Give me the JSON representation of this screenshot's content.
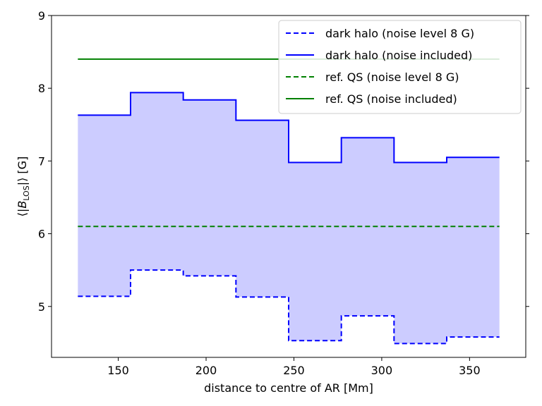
{
  "chart_data": {
    "type": "line",
    "xlabel": "distance to centre of AR [Mm]",
    "ylabel": "⟨|B_LOS|⟩ [G]",
    "ylabel_parts": {
      "open": "⟨|",
      "var": "B",
      "sub": "LOS",
      "close": "|⟩ [G]"
    },
    "xlim": [
      112,
      382
    ],
    "ylim": [
      4.3,
      9.0
    ],
    "xticks": [
      150,
      200,
      250,
      300,
      350
    ],
    "yticks": [
      5,
      6,
      7,
      8,
      9
    ],
    "grid": false,
    "legend_position": "top-right",
    "step_edges": [
      127,
      157,
      187,
      217,
      247,
      277,
      307,
      337,
      367
    ],
    "series": [
      {
        "name": "dark halo (noise level 8 G)",
        "kind": "step",
        "style": "dashed",
        "color": "#0000ff",
        "values": [
          5.14,
          5.5,
          5.42,
          5.13,
          4.53,
          4.87,
          4.49,
          4.58
        ]
      },
      {
        "name": "dark halo (noise included)",
        "kind": "step",
        "style": "solid",
        "color": "#0000ff",
        "values": [
          7.63,
          7.94,
          7.84,
          7.56,
          6.98,
          7.32,
          6.98,
          7.05
        ]
      },
      {
        "name": "ref. QS (noise level 8 G)",
        "kind": "hline",
        "style": "dashed",
        "color": "#008000",
        "value": 6.1,
        "x_range": [
          127,
          367
        ]
      },
      {
        "name": "ref. QS (noise included)",
        "kind": "hline",
        "style": "solid",
        "color": "#008000",
        "value": 8.4,
        "x_range": [
          127,
          367
        ]
      }
    ],
    "fill_between": {
      "lower_series": 0,
      "upper_series": 1,
      "color": "#ccccff"
    }
  }
}
